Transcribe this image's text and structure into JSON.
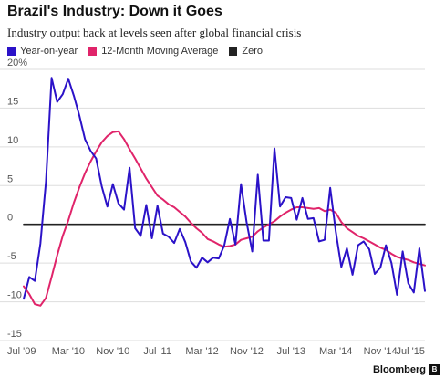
{
  "header": {
    "title": "Brazil's Industry: Down it Goes",
    "subtitle": "Industry output back at levels seen after global financial crisis"
  },
  "footer": {
    "brand": "Bloomberg",
    "brand_icon": "bloomberg-b-icon",
    "brand_icon_glyph": "B"
  },
  "chart_data": {
    "type": "line",
    "title": "Brazil's Industry: Down it Goes",
    "subtitle": "Industry output back at levels seen after global financial crisis",
    "xlabel": "",
    "ylabel": "",
    "ylim": [
      -15,
      20
    ],
    "yticks": [
      20,
      15,
      10,
      5,
      0,
      -5,
      -10,
      -15
    ],
    "ytick_labels": [
      "20%",
      "15",
      "10",
      "5",
      "0",
      "-5",
      "-10",
      "-15"
    ],
    "xlim": [
      "2009-07",
      "2015-07"
    ],
    "xticks": [
      "2009-07",
      "2010-03",
      "2010-11",
      "2011-07",
      "2012-03",
      "2012-11",
      "2013-07",
      "2014-03",
      "2014-11",
      "2015-07"
    ],
    "xtick_labels": [
      "Jul '09",
      "Mar '10",
      "Nov '10",
      "Jul '11",
      "Mar '12",
      "Nov '12",
      "Jul '13",
      "Mar '14",
      "Nov '14",
      "Jul '15"
    ],
    "grid": "horizontal",
    "legend_position": "top-left",
    "series": [
      {
        "name": "Year-on-year",
        "color": "#2b12c8",
        "x": [
          "2009-07",
          "2009-08",
          "2009-09",
          "2009-10",
          "2009-11",
          "2009-12",
          "2010-01",
          "2010-02",
          "2010-03",
          "2010-04",
          "2010-05",
          "2010-06",
          "2010-07",
          "2010-08",
          "2010-09",
          "2010-10",
          "2010-11",
          "2010-12",
          "2011-01",
          "2011-02",
          "2011-03",
          "2011-04",
          "2011-05",
          "2011-06",
          "2011-07",
          "2011-08",
          "2011-09",
          "2011-10",
          "2011-11",
          "2011-12",
          "2012-01",
          "2012-02",
          "2012-03",
          "2012-04",
          "2012-05",
          "2012-06",
          "2012-07",
          "2012-08",
          "2012-09",
          "2012-10",
          "2012-11",
          "2012-12",
          "2013-01",
          "2013-02",
          "2013-03",
          "2013-04",
          "2013-05",
          "2013-06",
          "2013-07",
          "2013-08",
          "2013-09",
          "2013-10",
          "2013-11",
          "2013-12",
          "2014-01",
          "2014-02",
          "2014-03",
          "2014-04",
          "2014-05",
          "2014-06",
          "2014-07",
          "2014-08",
          "2014-09",
          "2014-10",
          "2014-11",
          "2014-12",
          "2015-01",
          "2015-02",
          "2015-03",
          "2015-04",
          "2015-05",
          "2015-06",
          "2015-07"
        ],
        "values": [
          -9.6,
          -6.8,
          -7.3,
          -2.5,
          5.5,
          18.9,
          15.8,
          16.8,
          18.8,
          16.6,
          14.0,
          11.0,
          9.5,
          8.5,
          4.9,
          2.3,
          5.2,
          2.7,
          1.9,
          7.3,
          -0.5,
          -1.5,
          2.5,
          -1.8,
          2.4,
          -1.2,
          -1.6,
          -2.4,
          -0.6,
          -2.3,
          -4.8,
          -5.6,
          -4.3,
          -4.9,
          -4.3,
          -4.4,
          -2.7,
          0.7,
          -2.6,
          5.2,
          0.3,
          -3.5,
          6.4,
          -2.1,
          -2.1,
          9.8,
          2.3,
          3.5,
          3.4,
          0.6,
          3.4,
          0.7,
          0.8,
          -2.2,
          -2.0,
          4.7,
          -0.9,
          -5.5,
          -3.1,
          -6.5,
          -2.7,
          -2.2,
          -3.2,
          -6.4,
          -5.6,
          -2.7,
          -5.0,
          -9.1,
          -3.5,
          -7.6,
          -8.8,
          -3.1,
          -8.6
        ]
      },
      {
        "name": "12-Month Moving Average",
        "color": "#e0246a",
        "x": [
          "2009-07",
          "2009-08",
          "2009-09",
          "2009-10",
          "2009-11",
          "2009-12",
          "2010-01",
          "2010-02",
          "2010-03",
          "2010-04",
          "2010-05",
          "2010-06",
          "2010-07",
          "2010-08",
          "2010-09",
          "2010-10",
          "2010-11",
          "2010-12",
          "2011-01",
          "2011-02",
          "2011-03",
          "2011-04",
          "2011-05",
          "2011-06",
          "2011-07",
          "2011-08",
          "2011-09",
          "2011-10",
          "2011-11",
          "2011-12",
          "2012-01",
          "2012-02",
          "2012-03",
          "2012-04",
          "2012-05",
          "2012-06",
          "2012-07",
          "2012-08",
          "2012-09",
          "2012-10",
          "2012-11",
          "2012-12",
          "2013-01",
          "2013-02",
          "2013-03",
          "2013-04",
          "2013-05",
          "2013-06",
          "2013-07",
          "2013-08",
          "2013-09",
          "2013-10",
          "2013-11",
          "2013-12",
          "2014-01",
          "2014-02",
          "2014-03",
          "2014-04",
          "2014-05",
          "2014-06",
          "2014-07",
          "2014-08",
          "2014-09",
          "2014-10",
          "2014-11",
          "2014-12",
          "2015-01",
          "2015-02",
          "2015-03",
          "2015-04",
          "2015-05",
          "2015-06",
          "2015-07"
        ],
        "values": [
          -8.0,
          -9.0,
          -10.3,
          -10.5,
          -9.5,
          -6.8,
          -4.0,
          -1.5,
          0.5,
          2.8,
          4.8,
          6.6,
          8.1,
          9.4,
          10.6,
          11.4,
          11.9,
          12.0,
          11.0,
          9.7,
          8.5,
          7.2,
          5.9,
          4.8,
          3.7,
          3.2,
          2.6,
          2.2,
          1.6,
          1.0,
          0.2,
          -0.5,
          -1.1,
          -1.9,
          -2.2,
          -2.6,
          -2.9,
          -2.8,
          -2.6,
          -2.0,
          -1.8,
          -1.6,
          -0.9,
          -0.4,
          0.0,
          0.4,
          1.0,
          1.5,
          1.9,
          2.2,
          2.2,
          2.1,
          2.0,
          2.1,
          1.7,
          1.9,
          1.5,
          0.3,
          -0.5,
          -1.0,
          -1.5,
          -1.8,
          -2.2,
          -2.6,
          -3.0,
          -3.3,
          -3.8,
          -4.2,
          -4.4,
          -4.6,
          -4.9,
          -5.1,
          -5.3
        ]
      },
      {
        "name": "Zero",
        "color": "#222222",
        "x": [
          "2009-07",
          "2015-07"
        ],
        "values": [
          0,
          0
        ]
      }
    ]
  }
}
